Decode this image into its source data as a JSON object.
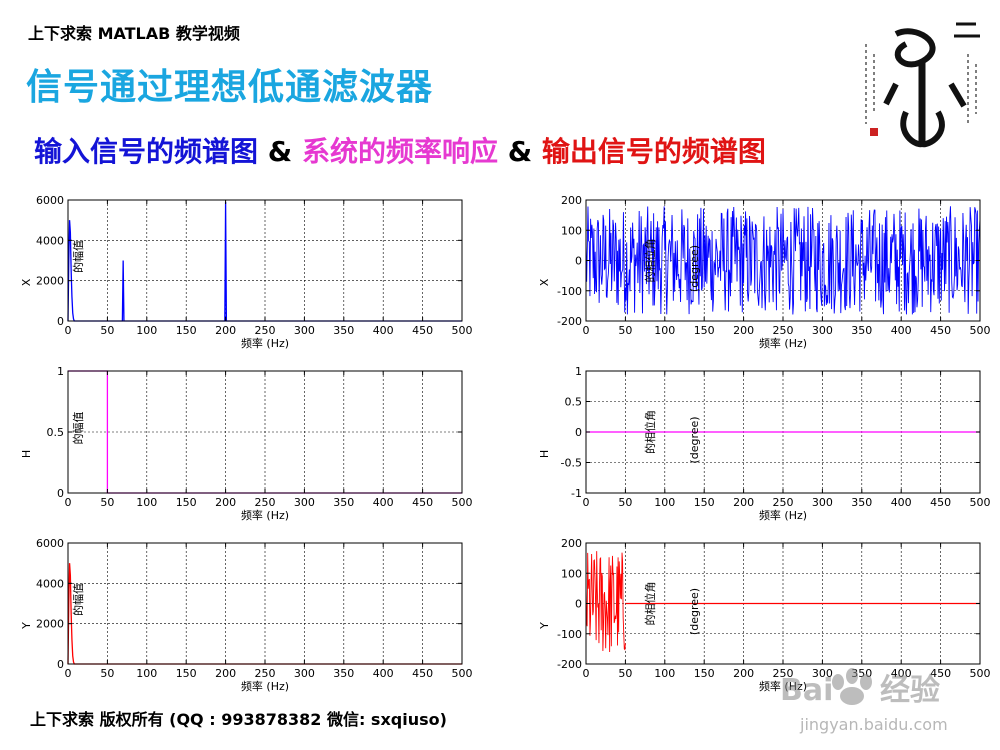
{
  "header": {
    "top_label": "上下求索 MATLAB 教学视频",
    "title": "信号通过理想低通滤波器",
    "subtitle": {
      "part1": "输入信号的频谱图",
      "amp1": " & ",
      "part2": "系统的频率响应",
      "amp2": " & ",
      "part3": "输出信号的频谱图"
    }
  },
  "footer": "上下求索 版权所有 (QQ : 993878382   微信: sxqiuso)",
  "watermark": {
    "text1": "Bai",
    "text2": "经验",
    "url": "jingyan.baidu.com"
  },
  "colors": {
    "title": "#1aa6e0",
    "blue": "#1414d6",
    "magenta": "#e639d1",
    "red": "#e01414"
  },
  "chart_data": [
    {
      "id": "p11",
      "type": "line",
      "color": "#0000ff",
      "ylabel": "X",
      "xlabel": "频率 (Hz)",
      "annotation": "的幅值",
      "xlim": [
        0,
        500
      ],
      "ylim": [
        0,
        6000
      ],
      "xticks": [
        0,
        50,
        100,
        150,
        200,
        250,
        300,
        350,
        400,
        450,
        500
      ],
      "yticks": [
        0,
        2000,
        4000,
        6000
      ],
      "x": [
        0,
        1,
        2,
        3,
        4,
        5,
        6,
        7,
        8,
        9,
        10,
        15,
        20,
        30,
        40,
        50,
        60,
        69,
        70,
        71,
        80,
        100,
        150,
        199,
        200,
        201,
        250,
        300,
        400,
        500
      ],
      "y": [
        0,
        3000,
        5000,
        4400,
        2500,
        1200,
        400,
        100,
        0,
        0,
        0,
        0,
        0,
        0,
        0,
        0,
        0,
        0,
        3000,
        0,
        0,
        0,
        0,
        0,
        5900,
        0,
        0,
        0,
        0,
        0
      ]
    },
    {
      "id": "p12",
      "type": "line",
      "color": "#0000ff",
      "ylabel": "X",
      "xlabel": "频率 (Hz)",
      "annotation": "的相位角",
      "annotation2": "(degree)",
      "xlim": [
        0,
        500
      ],
      "ylim": [
        -200,
        200
      ],
      "xticks": [
        0,
        50,
        100,
        150,
        200,
        250,
        300,
        350,
        400,
        450,
        500
      ],
      "yticks": [
        -200,
        -100,
        0,
        100,
        200
      ],
      "noise": {
        "x_start": 0,
        "x_end": 500,
        "amplitude": 180,
        "n": 600
      }
    },
    {
      "id": "p21",
      "type": "line",
      "color": "#ff00ff",
      "ylabel": "H",
      "xlabel": "频率 (Hz)",
      "annotation": "的幅值",
      "xlim": [
        0,
        500
      ],
      "ylim": [
        0,
        1
      ],
      "xticks": [
        0,
        50,
        100,
        150,
        200,
        250,
        300,
        350,
        400,
        450,
        500
      ],
      "yticks": [
        0,
        0.5,
        1
      ],
      "x": [
        0,
        50,
        50,
        500
      ],
      "y": [
        1,
        1,
        0,
        0
      ]
    },
    {
      "id": "p22",
      "type": "line",
      "color": "#ff00ff",
      "ylabel": "H",
      "xlabel": "频率 (Hz)",
      "annotation": "的相位角",
      "annotation2": "(degree)",
      "xlim": [
        0,
        500
      ],
      "ylim": [
        -1,
        1
      ],
      "xticks": [
        0,
        50,
        100,
        150,
        200,
        250,
        300,
        350,
        400,
        450,
        500
      ],
      "yticks": [
        -1,
        -0.5,
        0,
        0.5,
        1
      ],
      "x": [
        0,
        500
      ],
      "y": [
        0,
        0
      ]
    },
    {
      "id": "p31",
      "type": "line",
      "color": "#ff0000",
      "ylabel": "Y",
      "xlabel": "频率 (Hz)",
      "annotation": "的幅值",
      "xlim": [
        0,
        500
      ],
      "ylim": [
        0,
        6000
      ],
      "xticks": [
        0,
        50,
        100,
        150,
        200,
        250,
        300,
        350,
        400,
        450,
        500
      ],
      "yticks": [
        0,
        2000,
        4000,
        6000
      ],
      "x": [
        0,
        1,
        2,
        3,
        4,
        5,
        6,
        7,
        8,
        9,
        10,
        15,
        20,
        30,
        40,
        50,
        60,
        100,
        200,
        300,
        400,
        500
      ],
      "y": [
        0,
        3000,
        5000,
        4400,
        2500,
        1200,
        400,
        100,
        0,
        0,
        0,
        0,
        0,
        0,
        0,
        0,
        0,
        0,
        0,
        0,
        0,
        0
      ]
    },
    {
      "id": "p32",
      "type": "line",
      "color": "#ff0000",
      "ylabel": "Y",
      "xlabel": "频率 (Hz)",
      "annotation": "的相位角",
      "annotation2": "(degree)",
      "xlim": [
        0,
        500
      ],
      "ylim": [
        -200,
        200
      ],
      "xticks": [
        0,
        50,
        100,
        150,
        200,
        250,
        300,
        350,
        400,
        450,
        500
      ],
      "yticks": [
        -200,
        -100,
        0,
        100,
        200
      ],
      "noise": {
        "x_start": 0,
        "x_end": 50,
        "amplitude": 180,
        "n": 70
      },
      "x": [
        50,
        500
      ],
      "y": [
        0,
        0
      ]
    }
  ]
}
